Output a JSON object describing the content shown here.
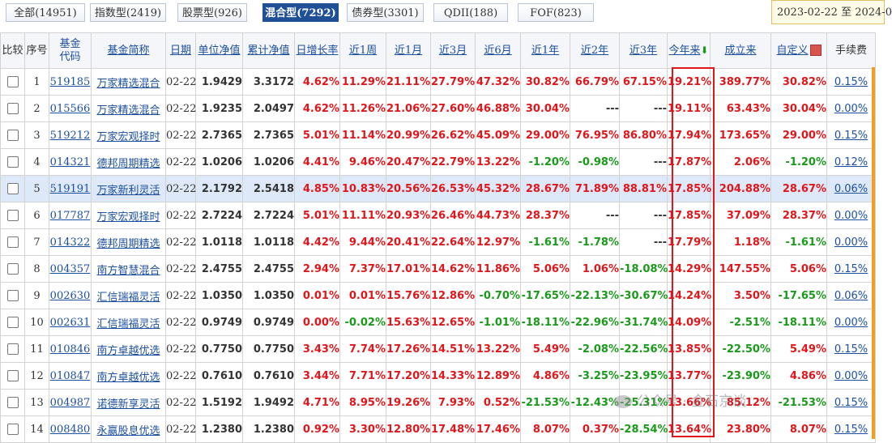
{
  "tabs": [
    {
      "label": "全部(14951)",
      "active": false
    },
    {
      "label": "指数型(2419)",
      "active": false
    },
    {
      "label": "股票型(926)",
      "active": false
    },
    {
      "label": "混合型(7292)",
      "active": true
    },
    {
      "label": "债券型(3301)",
      "active": false
    },
    {
      "label": "QDII(188)",
      "active": false
    },
    {
      "label": "FOF(823)",
      "active": false
    }
  ],
  "date_range": "2023-02-22 至 2024-0",
  "headers": {
    "compare": "比较",
    "seq": "序号",
    "code": "基金代码",
    "name": "基金简称",
    "date": "日期",
    "nav": "单位净值",
    "acc_nav": "累计净值",
    "daily": "日增长率",
    "w1": "近1周",
    "m1": "近1月",
    "m3": "近3月",
    "m6": "近6月",
    "y1": "近1年",
    "y2": "近2年",
    "y3": "近3年",
    "ytd": "今年来",
    "since": "成立来",
    "custom": "自定义",
    "fee": "手续费"
  },
  "sort_icon": "arrow-down-icon",
  "colors": {
    "up": "#e0161b",
    "down": "#1a9a1a",
    "active_tab": "#1f4f95",
    "link": "#1c4fa0",
    "highlight_row": "#dde8f8"
  },
  "rows": [
    {
      "seq": "1",
      "code": "519185",
      "name": "万家精选混合",
      "date": "02-22",
      "nav": "1.9429",
      "acc": "3.3172",
      "daily": "4.62%",
      "w1": "11.29%",
      "m1": "21.11%",
      "m3": "27.79%",
      "m6": "47.32%",
      "y1": "30.82%",
      "y2": "66.79%",
      "y3": "67.15%",
      "ytd": "19.21%",
      "since": "389.77%",
      "custom": "30.82%",
      "fee": "0.15%"
    },
    {
      "seq": "2",
      "code": "015566",
      "name": "万家精选混合",
      "date": "02-22",
      "nav": "1.9235",
      "acc": "2.0497",
      "daily": "4.62%",
      "w1": "11.26%",
      "m1": "21.06%",
      "m3": "27.60%",
      "m6": "46.88%",
      "y1": "30.04%",
      "y2": "---",
      "y3": "---",
      "ytd": "19.11%",
      "since": "63.43%",
      "custom": "30.04%",
      "fee": "0.00%"
    },
    {
      "seq": "3",
      "code": "519212",
      "name": "万家宏观择时",
      "date": "02-22",
      "nav": "2.7365",
      "acc": "2.7365",
      "daily": "5.01%",
      "w1": "11.14%",
      "m1": "20.99%",
      "m3": "26.62%",
      "m6": "45.09%",
      "y1": "29.00%",
      "y2": "76.95%",
      "y3": "86.80%",
      "ytd": "17.94%",
      "since": "173.65%",
      "custom": "29.00%",
      "fee": "0.15%"
    },
    {
      "seq": "4",
      "code": "014321",
      "name": "德邦周期精选",
      "date": "02-22",
      "nav": "1.0206",
      "acc": "1.0206",
      "daily": "4.41%",
      "w1": "9.46%",
      "m1": "20.47%",
      "m3": "22.79%",
      "m6": "13.22%",
      "y1": "-1.20%",
      "y2": "-0.98%",
      "y3": "---",
      "ytd": "17.87%",
      "since": "2.06%",
      "custom": "-1.20%",
      "fee": "0.12%"
    },
    {
      "seq": "5",
      "code": "519191",
      "name": "万家新利灵活",
      "date": "02-22",
      "nav": "2.1792",
      "acc": "2.5418",
      "daily": "4.85%",
      "w1": "10.83%",
      "m1": "20.56%",
      "m3": "26.53%",
      "m6": "45.32%",
      "y1": "28.67%",
      "y2": "71.89%",
      "y3": "88.81%",
      "ytd": "17.85%",
      "since": "204.88%",
      "custom": "28.67%",
      "fee": "0.06%"
    },
    {
      "seq": "6",
      "code": "017787",
      "name": "万家宏观择时",
      "date": "02-22",
      "nav": "2.7224",
      "acc": "2.7224",
      "daily": "5.01%",
      "w1": "11.11%",
      "m1": "20.93%",
      "m3": "26.46%",
      "m6": "44.73%",
      "y1": "28.37%",
      "y2": "---",
      "y3": "---",
      "ytd": "17.85%",
      "since": "37.09%",
      "custom": "28.37%",
      "fee": "0.00%"
    },
    {
      "seq": "7",
      "code": "014322",
      "name": "德邦周期精选",
      "date": "02-22",
      "nav": "1.0118",
      "acc": "1.0118",
      "daily": "4.42%",
      "w1": "9.44%",
      "m1": "20.41%",
      "m3": "22.64%",
      "m6": "12.97%",
      "y1": "-1.61%",
      "y2": "-1.78%",
      "y3": "---",
      "ytd": "17.79%",
      "since": "1.18%",
      "custom": "-1.61%",
      "fee": "0.00%"
    },
    {
      "seq": "8",
      "code": "004357",
      "name": "南方智慧混合",
      "date": "02-22",
      "nav": "2.4755",
      "acc": "2.4755",
      "daily": "2.94%",
      "w1": "7.37%",
      "m1": "17.01%",
      "m3": "14.62%",
      "m6": "11.86%",
      "y1": "5.06%",
      "y2": "1.06%",
      "y3": "-18.08%",
      "ytd": "14.29%",
      "since": "147.55%",
      "custom": "5.06%",
      "fee": "0.15%"
    },
    {
      "seq": "9",
      "code": "002630",
      "name": "汇信瑞福灵活",
      "date": "02-22",
      "nav": "1.0350",
      "acc": "1.0350",
      "daily": "0.01%",
      "w1": "0.01%",
      "m1": "15.76%",
      "m3": "12.86%",
      "m6": "-0.70%",
      "y1": "-17.65%",
      "y2": "-22.13%",
      "y3": "-30.67%",
      "ytd": "14.24%",
      "since": "3.50%",
      "custom": "-17.65%",
      "fee": "0.06%"
    },
    {
      "seq": "10",
      "code": "002631",
      "name": "汇信瑞福灵活",
      "date": "02-22",
      "nav": "0.9749",
      "acc": "0.9749",
      "daily": "0.00%",
      "w1": "-0.02%",
      "m1": "15.63%",
      "m3": "12.65%",
      "m6": "-1.01%",
      "y1": "-18.11%",
      "y2": "-22.96%",
      "y3": "-31.74%",
      "ytd": "14.09%",
      "since": "-2.51%",
      "custom": "-18.11%",
      "fee": "0.00%"
    },
    {
      "seq": "11",
      "code": "010846",
      "name": "南方卓越优选",
      "date": "02-22",
      "nav": "0.7750",
      "acc": "0.7750",
      "daily": "3.43%",
      "w1": "7.74%",
      "m1": "17.26%",
      "m3": "14.51%",
      "m6": "13.22%",
      "y1": "5.49%",
      "y2": "-2.08%",
      "y3": "-22.56%",
      "ytd": "13.85%",
      "since": "-22.50%",
      "custom": "5.49%",
      "fee": "0.15%"
    },
    {
      "seq": "12",
      "code": "010847",
      "name": "南方卓越优选",
      "date": "02-22",
      "nav": "0.7610",
      "acc": "0.7610",
      "daily": "3.44%",
      "w1": "7.71%",
      "m1": "17.20%",
      "m3": "14.33%",
      "m6": "12.89%",
      "y1": "4.86%",
      "y2": "-3.25%",
      "y3": "-23.95%",
      "ytd": "13.77%",
      "since": "-23.90%",
      "custom": "4.86%",
      "fee": "0.00%"
    },
    {
      "seq": "13",
      "code": "004987",
      "name": "诺德新享灵活",
      "date": "02-22",
      "nav": "1.5192",
      "acc": "1.9492",
      "daily": "4.71%",
      "w1": "8.95%",
      "m1": "19.26%",
      "m3": "7.93%",
      "m6": "0.52%",
      "y1": "-21.53%",
      "y2": "-12.43%",
      "y3": "-25.31%",
      "ytd": "13.66%",
      "since": "85.12%",
      "custom": "-21.53%",
      "fee": "0.15%"
    },
    {
      "seq": "14",
      "code": "008480",
      "name": "永赢股息优选",
      "date": "02-22",
      "nav": "1.2380",
      "acc": "1.2380",
      "daily": "0.92%",
      "w1": "3.30%",
      "m1": "12.80%",
      "m3": "17.48%",
      "m6": "17.46%",
      "y1": "8.07%",
      "y2": "0.37%",
      "y3": "-28.54%",
      "ytd": "13.64%",
      "since": "23.80%",
      "custom": "8.07%",
      "fee": "0.15%"
    }
  ],
  "highlighted_row": 4,
  "watermark": "公众号 · 金石京谈"
}
